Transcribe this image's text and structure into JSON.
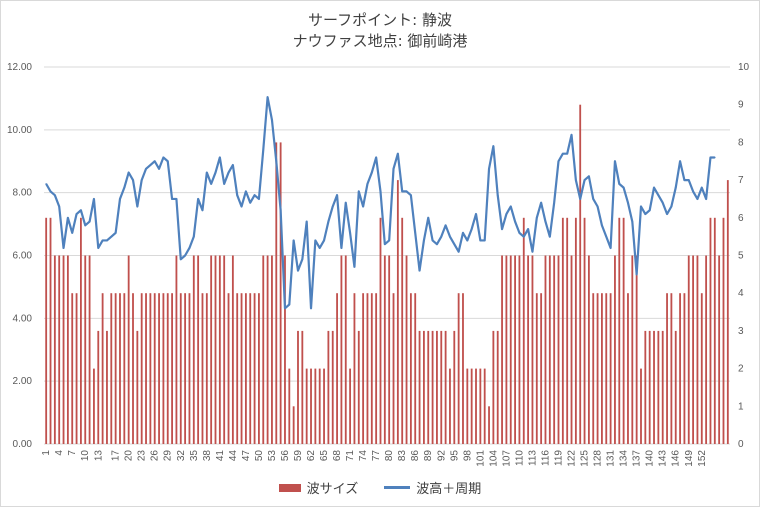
{
  "titles": {
    "line1": "サーフポイント: 静波",
    "line2": "ナウファス地点: 御前崎港"
  },
  "legend": {
    "bar_label": "波サイズ",
    "line_label": "波高＋周期"
  },
  "colors": {
    "bar": "#c0504d",
    "line": "#4f81bd",
    "grid": "#d9d9d9"
  },
  "chart_data": {
    "type": "bar",
    "x_ticks": [
      "1",
      "4",
      "7",
      "10",
      "13",
      "17",
      "20",
      "23",
      "26",
      "29",
      "32",
      "35",
      "38",
      "41",
      "44",
      "47",
      "50",
      "53",
      "56",
      "59",
      "62",
      "65",
      "68",
      "71",
      "74",
      "77",
      "80",
      "83",
      "86",
      "89",
      "92",
      "95",
      "98",
      "101",
      "104",
      "107",
      "110",
      "113",
      "116",
      "119",
      "122",
      "125",
      "128",
      "131",
      "134",
      "137",
      "140",
      "143",
      "146",
      "149",
      "152"
    ],
    "y_left": {
      "ticks": [
        "0.00",
        "2.00",
        "4.00",
        "6.00",
        "8.00",
        "10.00",
        "12.00"
      ],
      "range": [
        0,
        12
      ]
    },
    "y_right": {
      "ticks": [
        "0",
        "1",
        "2",
        "3",
        "4",
        "5",
        "6",
        "7",
        "8",
        "9",
        "10"
      ],
      "range": [
        0,
        10
      ]
    },
    "series": [
      {
        "name": "波サイズ",
        "type": "bar",
        "axis": "left",
        "values": [
          7.2,
          7.2,
          6,
          6,
          6,
          6,
          4.8,
          4.8,
          7.2,
          6,
          6,
          2.4,
          3.6,
          4.8,
          3.6,
          4.8,
          4.8,
          4.8,
          4.8,
          6,
          4.8,
          3.6,
          4.8,
          4.8,
          4.8,
          4.8,
          4.8,
          4.8,
          4.8,
          4.8,
          6,
          4.8,
          4.8,
          4.8,
          6,
          6,
          4.8,
          4.8,
          6,
          6,
          6,
          6,
          4.8,
          6,
          4.8,
          4.8,
          4.8,
          4.8,
          4.8,
          4.8,
          6,
          6,
          6,
          9.6,
          9.6,
          6,
          2.4,
          1.2,
          3.6,
          3.6,
          2.4,
          2.4,
          2.4,
          2.4,
          2.4,
          3.6,
          3.6,
          4.8,
          6,
          6,
          2.4,
          4.8,
          3.6,
          4.8,
          4.8,
          4.8,
          4.8,
          7.2,
          6,
          6,
          4.8,
          8.4,
          7.2,
          6,
          4.8,
          4.8,
          3.6,
          3.6,
          3.6,
          3.6,
          3.6,
          3.6,
          3.6,
          2.4,
          3.6,
          4.8,
          4.8,
          2.4,
          2.4,
          2.4,
          2.4,
          2.4,
          1.2,
          3.6,
          3.6,
          6,
          6,
          6,
          6,
          6,
          7.2,
          6,
          6,
          4.8,
          4.8,
          6,
          6,
          6,
          6,
          7.2,
          7.2,
          6,
          7.2,
          10.8,
          7.2,
          6,
          4.8,
          4.8,
          4.8,
          4.8,
          4.8,
          6,
          7.2,
          7.2,
          4.8,
          6,
          6,
          2.4,
          3.6,
          3.6,
          3.6,
          3.6,
          3.6,
          4.8,
          4.8,
          3.6,
          4.8,
          4.8,
          6,
          6,
          6,
          4.8,
          6,
          7.2,
          7.2,
          6,
          7.2,
          8.4
        ]
      },
      {
        "name": "波高＋周期",
        "type": "line",
        "axis": "right",
        "values": [
          6.9,
          6.7,
          6.6,
          6.3,
          5.2,
          6,
          5.6,
          6.1,
          6.2,
          5.8,
          5.9,
          6.5,
          5.2,
          5.4,
          5.4,
          5.5,
          5.6,
          6.5,
          6.8,
          7.2,
          7,
          6.3,
          7,
          7.3,
          7.4,
          7.5,
          7.3,
          7.6,
          7.5,
          6.5,
          6.5,
          4.9,
          5,
          5.2,
          5.5,
          6.5,
          6.2,
          7.2,
          6.9,
          7.2,
          7.6,
          6.9,
          7.2,
          7.4,
          6.6,
          6.3,
          6.7,
          6.4,
          6.6,
          6.5,
          7.8,
          9.2,
          8.6,
          7.5,
          6.2,
          3.6,
          3.7,
          5.4,
          4.6,
          4.9,
          5.9,
          3.6,
          5.4,
          5.2,
          5.4,
          5.9,
          6.3,
          6.6,
          5.2,
          6.4,
          5.6,
          4.7,
          6.7,
          6.3,
          6.9,
          7.2,
          7.6,
          6.7,
          5.3,
          5.4,
          7.3,
          7.7,
          6.7,
          6.7,
          6.6,
          5.6,
          4.6,
          5.4,
          6,
          5.4,
          5.3,
          5.5,
          5.8,
          5.5,
          5.3,
          5.1,
          5.6,
          5.4,
          5.7,
          6.1,
          5.4,
          5.4,
          7.3,
          7.9,
          6.6,
          5.7,
          6.1,
          6.3,
          5.9,
          5.6,
          5.5,
          5.7,
          5.1,
          6,
          6.4,
          5.9,
          5.5,
          6.4,
          7.5,
          7.7,
          7.7,
          8.2,
          7,
          6.5,
          7,
          7.1,
          6.5,
          6.3,
          5.8,
          5.5,
          5.2,
          7.5,
          6.9,
          6.8,
          6.4,
          5.9,
          4.5,
          6.3,
          6.1,
          6.2,
          6.8,
          6.6,
          6.4,
          6.1,
          6.3,
          6.8,
          7.5,
          7,
          7,
          6.7,
          6.5,
          6.8,
          6.5,
          7.6,
          7.6
        ]
      }
    ]
  }
}
